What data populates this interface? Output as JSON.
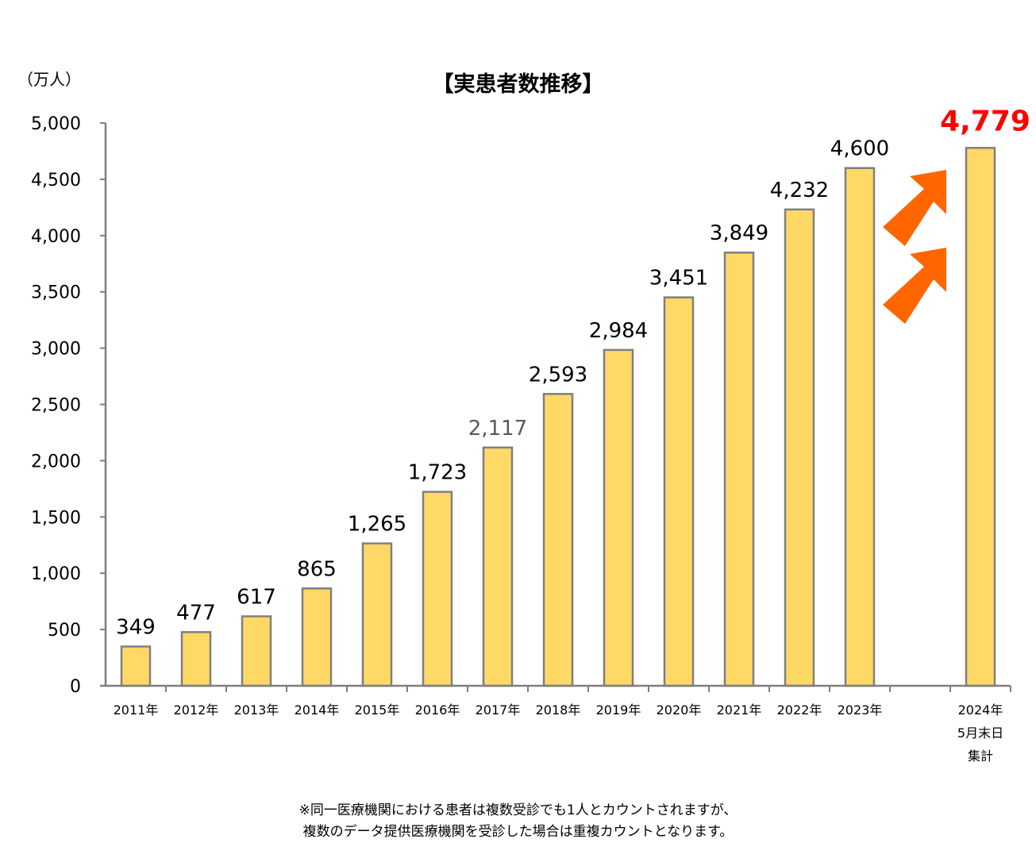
{
  "chart_data": {
    "type": "bar",
    "title": "【実患者数推移】",
    "unit_label": "（万人）",
    "ylim": [
      0,
      5000
    ],
    "yticks": [
      0,
      500,
      1000,
      1500,
      2000,
      2500,
      3000,
      3500,
      4000,
      4500,
      5000
    ],
    "ytick_labels": [
      "0",
      "500",
      "1,000",
      "1,500",
      "2,000",
      "2,500",
      "3,000",
      "3,500",
      "4,000",
      "4,500",
      "5,000"
    ],
    "categories": [
      [
        "2011年"
      ],
      [
        "2012年"
      ],
      [
        "2013年"
      ],
      [
        "2014年"
      ],
      [
        "2015年"
      ],
      [
        "2016年"
      ],
      [
        "2017年"
      ],
      [
        "2018年"
      ],
      [
        "2019年"
      ],
      [
        "2020年"
      ],
      [
        "2021年"
      ],
      [
        "2022年"
      ],
      [
        "2023年"
      ],
      [],
      [
        "2024年",
        "5月末日",
        "集計"
      ]
    ],
    "values": [
      349,
      477,
      617,
      865,
      1265,
      1723,
      2117,
      2593,
      2984,
      3451,
      3849,
      4232,
      4600,
      null,
      4779
    ],
    "value_labels": [
      "349",
      "477",
      "617",
      "865",
      "1,265",
      "1,723",
      "2,117",
      "2,593",
      "2,984",
      "3,451",
      "3,849",
      "4,232",
      "4,600",
      "",
      "4,779"
    ],
    "highlight_index": 14,
    "grid": false,
    "legend": "none"
  },
  "notes": [
    "※同一医療機関における患者は複数受診でも1人とカウントされますが、",
    "複数のデータ提供医療機関を受診した場合は重複カウントとなります。"
  ],
  "colors": {
    "bar_fill": "#FFD966",
    "bar_stroke": "#7F7F7F",
    "axis": "#7F7F7F",
    "highlight_text": "#FF0000",
    "arrow": "#FF6600",
    "muted_label": "#595959"
  },
  "icons": [
    "up-right-arrow-icon",
    "up-right-arrow-icon"
  ]
}
